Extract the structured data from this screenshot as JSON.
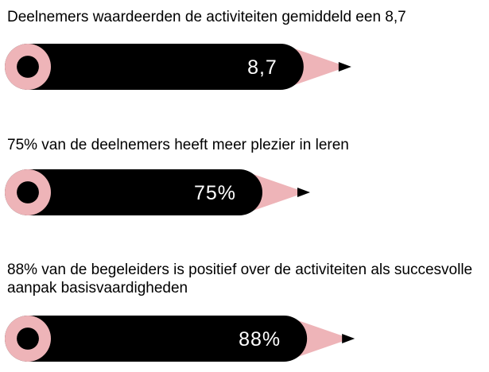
{
  "colors": {
    "pencil_body": "#000000",
    "pencil_tip": "#eeb4b8",
    "value_text": "#ffffff",
    "caption_text": "#000000"
  },
  "icons": [
    "pencil-icon"
  ],
  "chart_data": {
    "type": "bar",
    "orientation": "horizontal",
    "bar_shape": "pencil",
    "grid": false,
    "legend": "none",
    "items": [
      {
        "caption": "Deelnemers waardeerden de activiteiten gemiddeld een 8,7",
        "label": "8,7",
        "value": 8.7,
        "scale_max": 10
      },
      {
        "caption": "75% van de deelnemers heeft meer plezier in leren",
        "label": "75%",
        "value": 75,
        "scale_max": 100
      },
      {
        "caption": "88% van de begeleiders is positief over de activiteiten als succesvolle aanpak basisvaardigheden",
        "label": "88%",
        "value": 88,
        "scale_max": 100
      }
    ]
  }
}
